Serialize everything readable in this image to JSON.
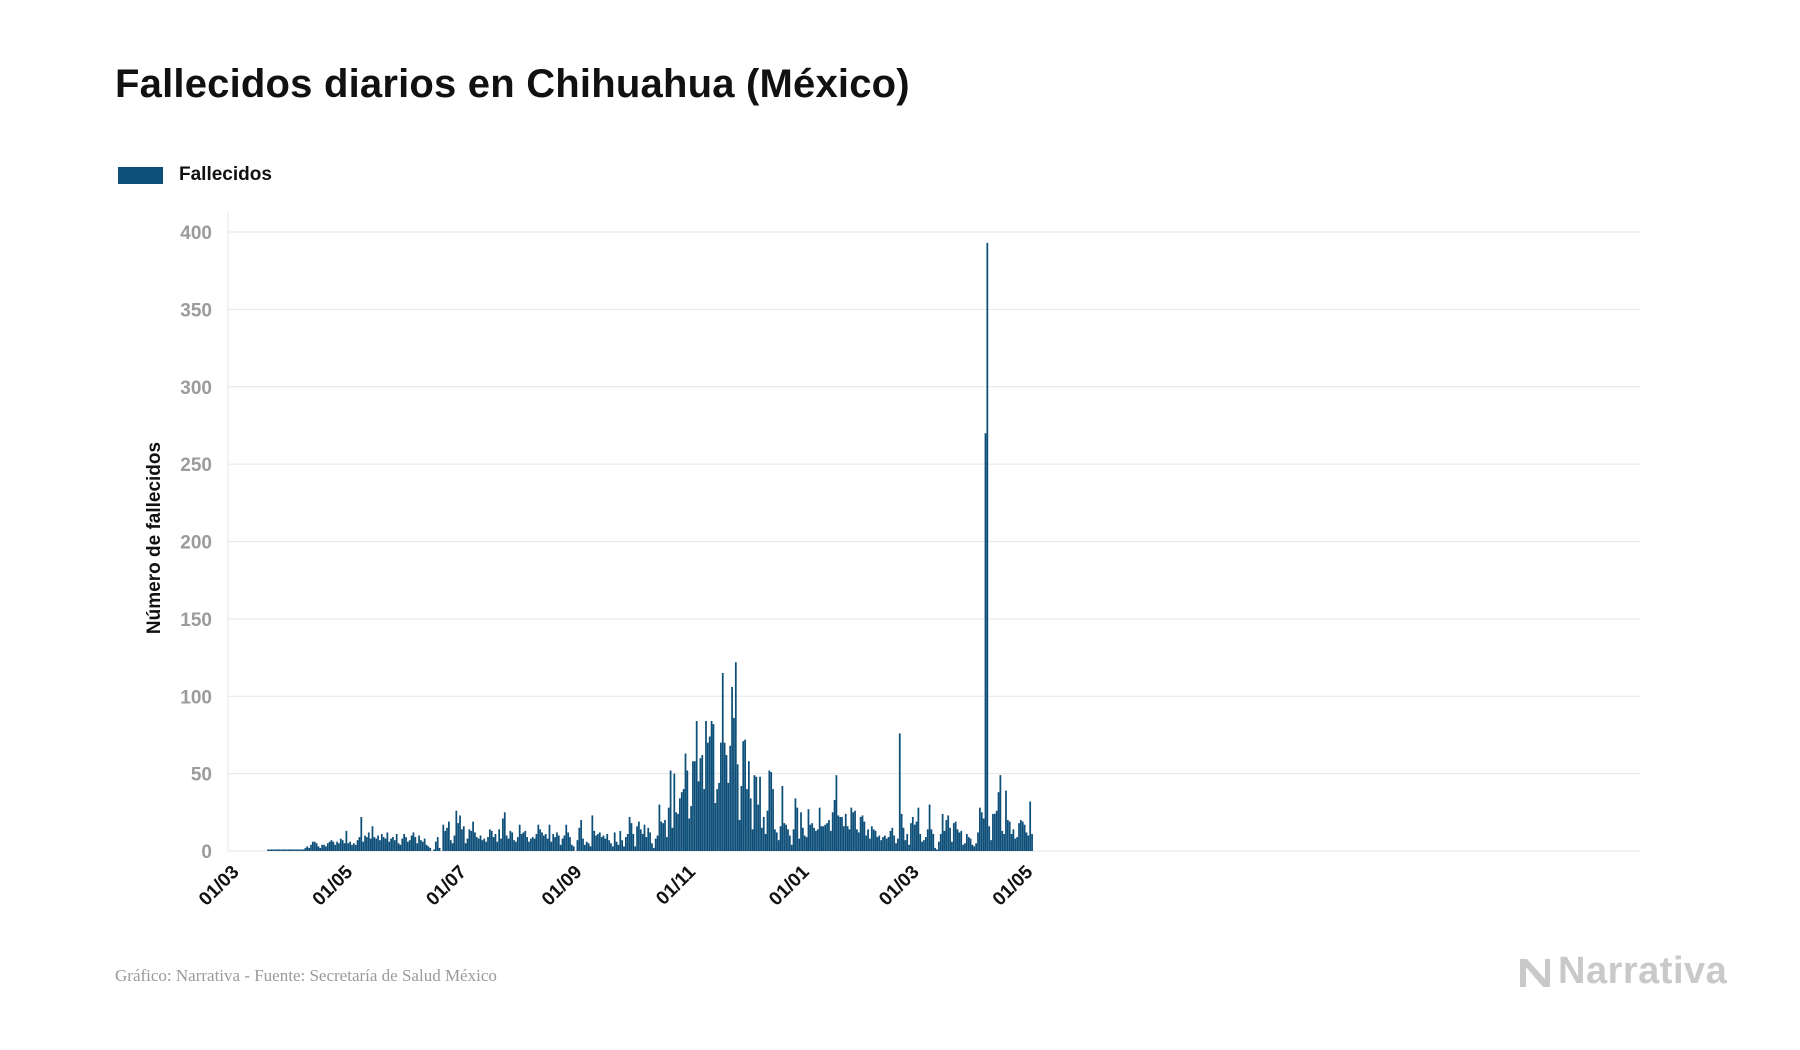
{
  "title": "Fallecidos diarios en Chihuahua (México)",
  "footer": {
    "source": "Gráfico: Narrativa - Fuente: Secretaría de Salud México",
    "brand": "Narrativa"
  },
  "colors": {
    "bar": "#0d4f78",
    "grid": "#e6e6e6",
    "tick_label": "#9b9b9b",
    "brand": "#c9c9c9"
  },
  "chart_data": {
    "type": "bar",
    "legend": [
      "Fallecidos"
    ],
    "legend_placement": "top-left",
    "ylabel": "Número de fallecidos",
    "xlabel": "",
    "ylim": [
      0,
      400
    ],
    "yticks": [
      0,
      50,
      100,
      150,
      200,
      250,
      300,
      350,
      400
    ],
    "grid": true,
    "x_start": "2020-03-01",
    "xticks": [
      {
        "date": "2020-03-01",
        "label": "01/03"
      },
      {
        "date": "2020-05-01",
        "label": "01/05"
      },
      {
        "date": "2020-07-01",
        "label": "01/07"
      },
      {
        "date": "2020-09-01",
        "label": "01/09"
      },
      {
        "date": "2020-11-01",
        "label": "01/11"
      },
      {
        "date": "2021-01-01",
        "label": "01/01"
      },
      {
        "date": "2021-03-01",
        "label": "01/03"
      },
      {
        "date": "2021-05-01",
        "label": "01/05"
      }
    ],
    "series": [
      {
        "name": "Fallecidos",
        "values": [
          0,
          0,
          0,
          0,
          0,
          0,
          0,
          0,
          0,
          0,
          0,
          0,
          0,
          0,
          0,
          0,
          0,
          0,
          0,
          0,
          1,
          1,
          1,
          1,
          1,
          1,
          1,
          1,
          1,
          1,
          1,
          1,
          1,
          1,
          1,
          1,
          1,
          1,
          1,
          1,
          2,
          3,
          2,
          4,
          6,
          6,
          5,
          3,
          2,
          4,
          4,
          3,
          5,
          6,
          7,
          6,
          4,
          6,
          5,
          8,
          7,
          5,
          13,
          5,
          6,
          4,
          5,
          4,
          7,
          9,
          22,
          6,
          10,
          9,
          12,
          8,
          16,
          9,
          8,
          10,
          7,
          11,
          9,
          8,
          12,
          6,
          8,
          9,
          7,
          11,
          5,
          4,
          8,
          11,
          9,
          6,
          7,
          10,
          12,
          9,
          5,
          10,
          7,
          6,
          8,
          4,
          3,
          2,
          0,
          1,
          6,
          9,
          2,
          0,
          17,
          13,
          15,
          19,
          7,
          5,
          10,
          26,
          18,
          23,
          14,
          16,
          5,
          8,
          14,
          13,
          19,
          12,
          9,
          8,
          10,
          7,
          8,
          6,
          9,
          14,
          13,
          9,
          11,
          6,
          14,
          8,
          21,
          25,
          10,
          8,
          13,
          12,
          7,
          6,
          9,
          17,
          11,
          12,
          13,
          9,
          6,
          8,
          9,
          8,
          11,
          17,
          14,
          12,
          10,
          11,
          8,
          17,
          6,
          11,
          9,
          12,
          10,
          4,
          8,
          10,
          17,
          12,
          9,
          4,
          3,
          0,
          7,
          15,
          20,
          8,
          4,
          6,
          5,
          3,
          23,
          13,
          10,
          11,
          12,
          9,
          10,
          8,
          11,
          7,
          5,
          3,
          12,
          6,
          4,
          13,
          7,
          3,
          9,
          11,
          22,
          18,
          11,
          3,
          16,
          19,
          14,
          11,
          17,
          9,
          15,
          12,
          5,
          2,
          8,
          10,
          30,
          19,
          18,
          20,
          9,
          28,
          52,
          15,
          50,
          25,
          24,
          34,
          38,
          40,
          63,
          52,
          21,
          29,
          58,
          58,
          84,
          45,
          60,
          62,
          40,
          84,
          70,
          74,
          84,
          82,
          31,
          40,
          44,
          70,
          115,
          70,
          62,
          44,
          68,
          106,
          86,
          122,
          56,
          20,
          42,
          71,
          72,
          40,
          58,
          34,
          14,
          49,
          48,
          30,
          48,
          15,
          22,
          11,
          26,
          52,
          51,
          40,
          14,
          12,
          7,
          16,
          42,
          18,
          17,
          14,
          10,
          4,
          14,
          34,
          28,
          8,
          25,
          15,
          10,
          9,
          27,
          17,
          18,
          15,
          13,
          14,
          28,
          16,
          16,
          17,
          18,
          20,
          13,
          25,
          33,
          49,
          23,
          22,
          22,
          16,
          24,
          16,
          14,
          28,
          25,
          26,
          14,
          12,
          22,
          23,
          19,
          10,
          14,
          8,
          16,
          14,
          13,
          9,
          10,
          7,
          9,
          10,
          8,
          9,
          13,
          15,
          10,
          5,
          8,
          76,
          24,
          15,
          7,
          11,
          4,
          18,
          22,
          17,
          19,
          28,
          11,
          6,
          7,
          9,
          14,
          30,
          14,
          11,
          2,
          1,
          6,
          11,
          24,
          13,
          20,
          23,
          15,
          6,
          18,
          19,
          14,
          12,
          13,
          4,
          5,
          11,
          9,
          8,
          4,
          3,
          5,
          12,
          28,
          25,
          21,
          270,
          393,
          16,
          7,
          24,
          24,
          26,
          38,
          49,
          13,
          11,
          39,
          20,
          19,
          11,
          14,
          8,
          9,
          18,
          20,
          19,
          17,
          12,
          10,
          32,
          11
        ]
      }
    ]
  }
}
